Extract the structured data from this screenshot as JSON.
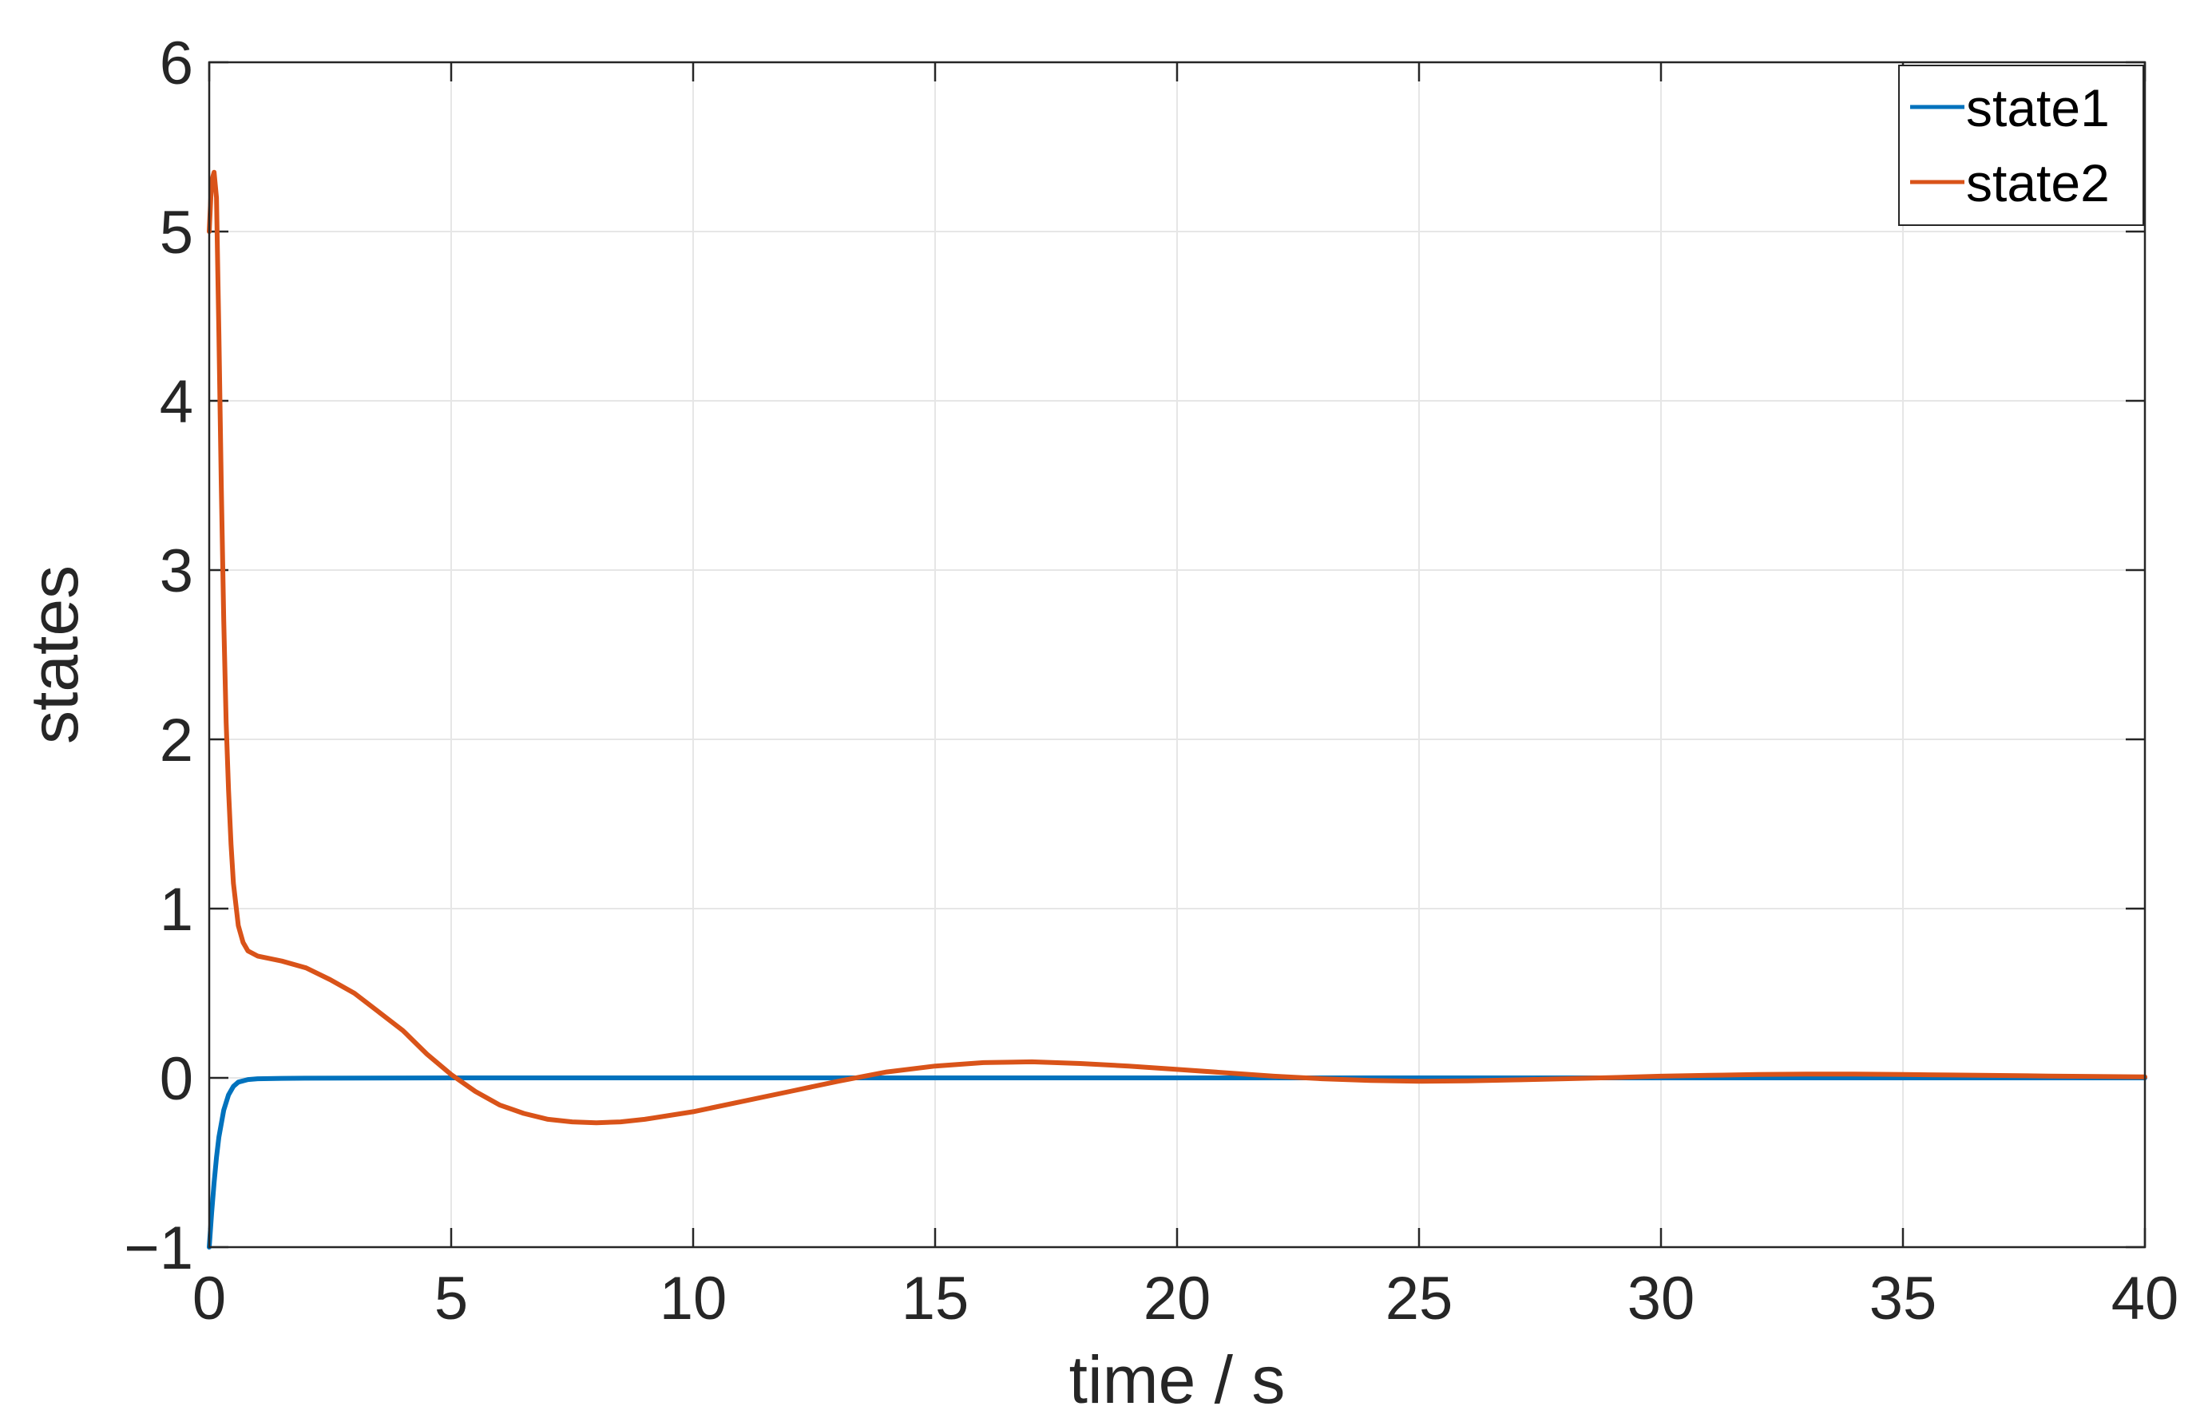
{
  "chart_data": {
    "type": "line",
    "title": "",
    "xlabel": "time / s",
    "ylabel": "states",
    "xlim": [
      0,
      40
    ],
    "ylim": [
      -1,
      6
    ],
    "xticks": [
      0,
      5,
      10,
      15,
      20,
      25,
      30,
      35,
      40
    ],
    "yticks": [
      -1,
      0,
      1,
      2,
      3,
      4,
      5,
      6
    ],
    "xtick_labels": [
      "0",
      "5",
      "10",
      "15",
      "20",
      "25",
      "30",
      "35",
      "40"
    ],
    "ytick_labels": [
      "−1",
      "0",
      "1",
      "2",
      "3",
      "4",
      "5",
      "6"
    ],
    "grid": true,
    "legend_position": "top-right",
    "series": [
      {
        "name": "state1",
        "color": "#0072BD",
        "points": [
          [
            0,
            -1
          ],
          [
            0.05,
            -0.8
          ],
          [
            0.1,
            -0.62
          ],
          [
            0.15,
            -0.47
          ],
          [
            0.2,
            -0.35
          ],
          [
            0.3,
            -0.19
          ],
          [
            0.4,
            -0.1
          ],
          [
            0.5,
            -0.05
          ],
          [
            0.6,
            -0.025
          ],
          [
            0.8,
            -0.01
          ],
          [
            1,
            -0.005
          ],
          [
            1.5,
            -0.003
          ],
          [
            2,
            -0.002
          ],
          [
            3,
            -0.001
          ],
          [
            5,
            0
          ],
          [
            10,
            0
          ],
          [
            20,
            0
          ],
          [
            30,
            0
          ],
          [
            40,
            0
          ]
        ]
      },
      {
        "name": "state2",
        "color": "#D95319",
        "points": [
          [
            0,
            5
          ],
          [
            0.05,
            5.3
          ],
          [
            0.1,
            5.35
          ],
          [
            0.15,
            5.2
          ],
          [
            0.2,
            4.4
          ],
          [
            0.25,
            3.5
          ],
          [
            0.3,
            2.7
          ],
          [
            0.35,
            2.1
          ],
          [
            0.4,
            1.7
          ],
          [
            0.45,
            1.38
          ],
          [
            0.5,
            1.15
          ],
          [
            0.6,
            0.9
          ],
          [
            0.7,
            0.8
          ],
          [
            0.8,
            0.75
          ],
          [
            1,
            0.72
          ],
          [
            1.5,
            0.69
          ],
          [
            2,
            0.65
          ],
          [
            2.5,
            0.58
          ],
          [
            3,
            0.5
          ],
          [
            3.5,
            0.39
          ],
          [
            4,
            0.28
          ],
          [
            4.5,
            0.14
          ],
          [
            5,
            0.02
          ],
          [
            5.5,
            -0.08
          ],
          [
            6,
            -0.16
          ],
          [
            6.5,
            -0.21
          ],
          [
            7,
            -0.245
          ],
          [
            7.5,
            -0.26
          ],
          [
            8,
            -0.265
          ],
          [
            8.5,
            -0.26
          ],
          [
            9,
            -0.245
          ],
          [
            10,
            -0.2
          ],
          [
            11,
            -0.14
          ],
          [
            12,
            -0.08
          ],
          [
            13,
            -0.02
          ],
          [
            14,
            0.035
          ],
          [
            15,
            0.07
          ],
          [
            16,
            0.09
          ],
          [
            17,
            0.095
          ],
          [
            18,
            0.085
          ],
          [
            19,
            0.07
          ],
          [
            20,
            0.05
          ],
          [
            21,
            0.03
          ],
          [
            22,
            0.01
          ],
          [
            23,
            -0.005
          ],
          [
            24,
            -0.015
          ],
          [
            25,
            -0.02
          ],
          [
            26,
            -0.018
          ],
          [
            27,
            -0.012
          ],
          [
            28,
            -0.005
          ],
          [
            29,
            0.002
          ],
          [
            30,
            0.01
          ],
          [
            31,
            0.015
          ],
          [
            32,
            0.02
          ],
          [
            33,
            0.022
          ],
          [
            34,
            0.022
          ],
          [
            35,
            0.02
          ],
          [
            36,
            0.017
          ],
          [
            37,
            0.014
          ],
          [
            38,
            0.011
          ],
          [
            39,
            0.008
          ],
          [
            40,
            0.006
          ]
        ]
      }
    ]
  }
}
